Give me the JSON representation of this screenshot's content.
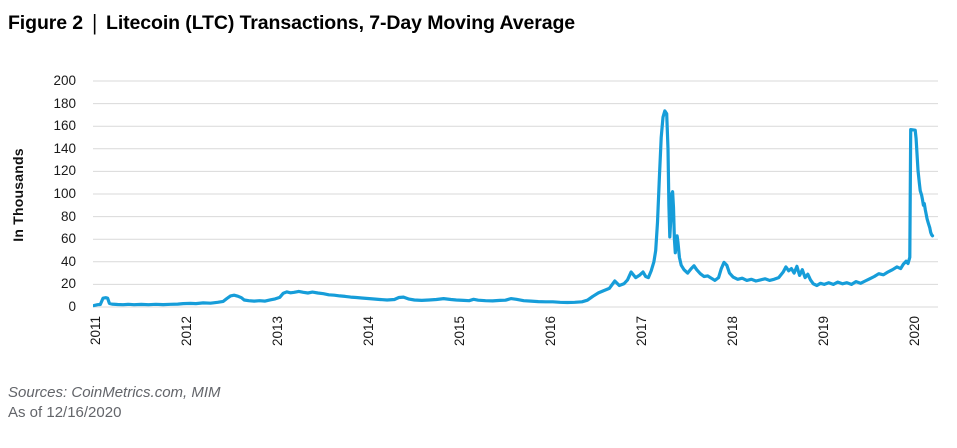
{
  "title": {
    "figure_label": "Figure 2",
    "separator": "|",
    "text": "Litecoin (LTC) Transactions, 7-Day Moving Average"
  },
  "footer": {
    "sources_line": "Sources: CoinMetrics.com, MIM",
    "as_of_line": "As of 12/16/2020"
  },
  "chart_data": {
    "type": "line",
    "title": "Litecoin (LTC) Transactions, 7-Day Moving Average",
    "ylabel": "In Thousands",
    "xlabel": "",
    "ylim": [
      0,
      200
    ],
    "yticks": [
      0,
      20,
      40,
      60,
      80,
      100,
      120,
      140,
      160,
      180,
      200
    ],
    "xticks": [
      2011,
      2012,
      2013,
      2014,
      2015,
      2016,
      2017,
      2018,
      2019,
      2020
    ],
    "xlim": [
      2010.97,
      2020.25
    ],
    "grid": "horizontal-only",
    "legend": "none",
    "colors": {
      "line": "#169dd9",
      "grid": "#d9d9d9",
      "tick_text": "#1a1a1a",
      "title_text": "#000000",
      "footer_text": "#63656a"
    },
    "series": [
      {
        "name": "LTC transactions, 7-day moving average (thousands)",
        "points": [
          [
            2010.98,
            1.2
          ],
          [
            2011.02,
            2.0
          ],
          [
            2011.05,
            2.2
          ],
          [
            2011.08,
            7.8
          ],
          [
            2011.11,
            8.2
          ],
          [
            2011.13,
            7.8
          ],
          [
            2011.15,
            3.2
          ],
          [
            2011.18,
            2.6
          ],
          [
            2011.24,
            2.2
          ],
          [
            2011.3,
            2.0
          ],
          [
            2011.36,
            2.4
          ],
          [
            2011.42,
            2.0
          ],
          [
            2011.5,
            2.3
          ],
          [
            2011.58,
            2.0
          ],
          [
            2011.66,
            2.4
          ],
          [
            2011.74,
            2.1
          ],
          [
            2011.82,
            2.4
          ],
          [
            2011.9,
            2.6
          ],
          [
            2011.96,
            3.0
          ],
          [
            2012.04,
            3.2
          ],
          [
            2012.1,
            3.0
          ],
          [
            2012.18,
            3.6
          ],
          [
            2012.26,
            3.4
          ],
          [
            2012.34,
            4.2
          ],
          [
            2012.4,
            5.0
          ],
          [
            2012.44,
            7.5
          ],
          [
            2012.48,
            9.8
          ],
          [
            2012.52,
            10.4
          ],
          [
            2012.56,
            9.6
          ],
          [
            2012.6,
            8.2
          ],
          [
            2012.63,
            6.2
          ],
          [
            2012.68,
            5.6
          ],
          [
            2012.74,
            5.2
          ],
          [
            2012.8,
            5.6
          ],
          [
            2012.86,
            5.2
          ],
          [
            2012.92,
            6.4
          ],
          [
            2012.97,
            7.2
          ],
          [
            2013.02,
            8.5
          ],
          [
            2013.06,
            12.2
          ],
          [
            2013.1,
            13.4
          ],
          [
            2013.14,
            12.6
          ],
          [
            2013.18,
            13.0
          ],
          [
            2013.23,
            13.8
          ],
          [
            2013.28,
            13.0
          ],
          [
            2013.33,
            12.4
          ],
          [
            2013.38,
            13.2
          ],
          [
            2013.44,
            12.4
          ],
          [
            2013.5,
            11.8
          ],
          [
            2013.56,
            10.8
          ],
          [
            2013.62,
            10.4
          ],
          [
            2013.68,
            9.8
          ],
          [
            2013.74,
            9.4
          ],
          [
            2013.8,
            8.8
          ],
          [
            2013.86,
            8.4
          ],
          [
            2013.92,
            8.0
          ],
          [
            2013.97,
            7.6
          ],
          [
            2014.04,
            7.2
          ],
          [
            2014.12,
            6.6
          ],
          [
            2014.2,
            6.2
          ],
          [
            2014.28,
            6.6
          ],
          [
            2014.33,
            8.4
          ],
          [
            2014.38,
            8.8
          ],
          [
            2014.44,
            7.0
          ],
          [
            2014.5,
            6.2
          ],
          [
            2014.58,
            5.8
          ],
          [
            2014.66,
            6.2
          ],
          [
            2014.74,
            6.6
          ],
          [
            2014.82,
            7.4
          ],
          [
            2014.9,
            6.6
          ],
          [
            2014.96,
            6.2
          ],
          [
            2015.04,
            5.8
          ],
          [
            2015.1,
            5.6
          ],
          [
            2015.15,
            6.8
          ],
          [
            2015.2,
            6.0
          ],
          [
            2015.28,
            5.6
          ],
          [
            2015.36,
            5.4
          ],
          [
            2015.44,
            5.8
          ],
          [
            2015.5,
            6.0
          ],
          [
            2015.56,
            7.4
          ],
          [
            2015.62,
            6.8
          ],
          [
            2015.7,
            5.6
          ],
          [
            2015.78,
            5.2
          ],
          [
            2015.86,
            4.8
          ],
          [
            2015.94,
            4.6
          ],
          [
            2016.02,
            4.6
          ],
          [
            2016.1,
            4.2
          ],
          [
            2016.18,
            4.0
          ],
          [
            2016.26,
            4.2
          ],
          [
            2016.34,
            4.6
          ],
          [
            2016.4,
            6.0
          ],
          [
            2016.46,
            9.5
          ],
          [
            2016.52,
            12.5
          ],
          [
            2016.58,
            14.5
          ],
          [
            2016.64,
            16.5
          ],
          [
            2016.7,
            23.0
          ],
          [
            2016.75,
            19.0
          ],
          [
            2016.8,
            20.5
          ],
          [
            2016.84,
            24.0
          ],
          [
            2016.88,
            31.0
          ],
          [
            2016.93,
            26.0
          ],
          [
            2016.97,
            28.0
          ],
          [
            2017.01,
            31.0
          ],
          [
            2017.04,
            27.0
          ],
          [
            2017.07,
            26.0
          ],
          [
            2017.1,
            32.0
          ],
          [
            2017.13,
            40.0
          ],
          [
            2017.15,
            50.0
          ],
          [
            2017.17,
            75.0
          ],
          [
            2017.19,
            115.0
          ],
          [
            2017.21,
            150.0
          ],
          [
            2017.23,
            168.0
          ],
          [
            2017.25,
            173.5
          ],
          [
            2017.27,
            171.0
          ],
          [
            2017.285,
            140.0
          ],
          [
            2017.295,
            90.0
          ],
          [
            2017.305,
            62.0
          ],
          [
            2017.315,
            78.0
          ],
          [
            2017.325,
            100.0
          ],
          [
            2017.335,
            102.0
          ],
          [
            2017.345,
            88.0
          ],
          [
            2017.355,
            60.0
          ],
          [
            2017.365,
            48.0
          ],
          [
            2017.375,
            55.0
          ],
          [
            2017.385,
            63.0
          ],
          [
            2017.395,
            57.0
          ],
          [
            2017.41,
            44.0
          ],
          [
            2017.43,
            37.0
          ],
          [
            2017.46,
            33.0
          ],
          [
            2017.5,
            30.0
          ],
          [
            2017.54,
            34.0
          ],
          [
            2017.57,
            36.5
          ],
          [
            2017.6,
            33.0
          ],
          [
            2017.64,
            29.5
          ],
          [
            2017.68,
            27.0
          ],
          [
            2017.72,
            27.5
          ],
          [
            2017.76,
            25.5
          ],
          [
            2017.8,
            23.5
          ],
          [
            2017.84,
            26.0
          ],
          [
            2017.87,
            34.0
          ],
          [
            2017.9,
            39.5
          ],
          [
            2017.93,
            37.0
          ],
          [
            2017.96,
            30.0
          ],
          [
            2018.0,
            26.5
          ],
          [
            2018.05,
            24.5
          ],
          [
            2018.1,
            25.5
          ],
          [
            2018.15,
            23.5
          ],
          [
            2018.2,
            24.5
          ],
          [
            2018.25,
            23.0
          ],
          [
            2018.3,
            24.0
          ],
          [
            2018.35,
            25.0
          ],
          [
            2018.4,
            23.5
          ],
          [
            2018.45,
            24.5
          ],
          [
            2018.5,
            26.0
          ],
          [
            2018.55,
            31.0
          ],
          [
            2018.58,
            35.5
          ],
          [
            2018.61,
            32.0
          ],
          [
            2018.64,
            34.0
          ],
          [
            2018.67,
            30.0
          ],
          [
            2018.7,
            36.0
          ],
          [
            2018.73,
            28.0
          ],
          [
            2018.76,
            33.0
          ],
          [
            2018.79,
            26.0
          ],
          [
            2018.82,
            29.0
          ],
          [
            2018.85,
            24.0
          ],
          [
            2018.88,
            20.5
          ],
          [
            2018.92,
            19.0
          ],
          [
            2018.96,
            21.0
          ],
          [
            2019.0,
            20.0
          ],
          [
            2019.05,
            21.5
          ],
          [
            2019.1,
            20.0
          ],
          [
            2019.15,
            22.0
          ],
          [
            2019.2,
            20.5
          ],
          [
            2019.25,
            21.5
          ],
          [
            2019.3,
            20.0
          ],
          [
            2019.35,
            22.5
          ],
          [
            2019.4,
            21.0
          ],
          [
            2019.45,
            23.0
          ],
          [
            2019.5,
            25.0
          ],
          [
            2019.55,
            27.0
          ],
          [
            2019.6,
            29.5
          ],
          [
            2019.65,
            28.5
          ],
          [
            2019.7,
            31.0
          ],
          [
            2019.75,
            33.0
          ],
          [
            2019.8,
            35.5
          ],
          [
            2019.84,
            34.0
          ],
          [
            2019.87,
            38.0
          ],
          [
            2019.9,
            40.5
          ],
          [
            2019.92,
            38.5
          ],
          [
            2019.94,
            44.0
          ],
          [
            2019.95,
            157.0
          ],
          [
            2020.0,
            156.5
          ],
          [
            2020.01,
            149.0
          ],
          [
            2020.03,
            121.0
          ],
          [
            2020.045,
            110.0
          ],
          [
            2020.055,
            103.0
          ],
          [
            2020.07,
            99.0
          ],
          [
            2020.08,
            95.0
          ],
          [
            2020.09,
            90.0
          ],
          [
            2020.1,
            91.5
          ],
          [
            2020.11,
            86.0
          ],
          [
            2020.12,
            82.0
          ],
          [
            2020.13,
            78.0
          ],
          [
            2020.145,
            74.0
          ],
          [
            2020.16,
            70.0
          ],
          [
            2020.17,
            66.0
          ],
          [
            2020.18,
            64.0
          ],
          [
            2020.19,
            63.0
          ]
        ]
      }
    ]
  }
}
